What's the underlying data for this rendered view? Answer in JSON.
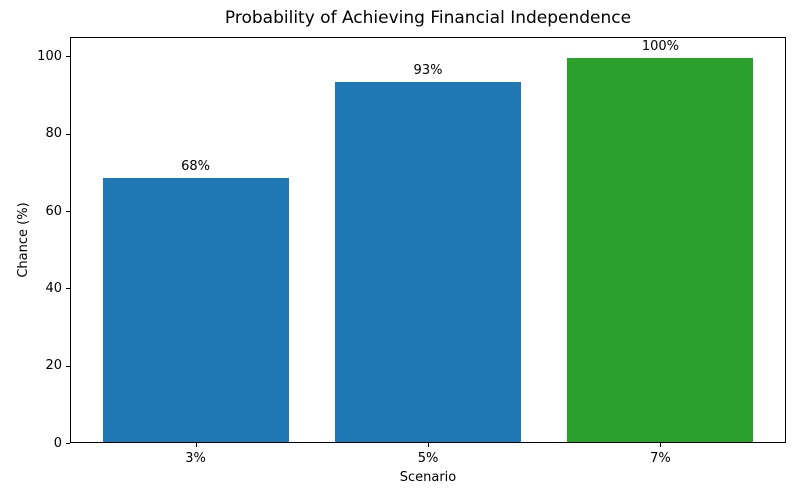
{
  "chart_data": {
    "type": "bar",
    "title": "Probability of Achieving Financial Independence",
    "xlabel": "Scenario",
    "ylabel": "Chance (%)",
    "categories": [
      "3%",
      "5%",
      "7%"
    ],
    "values": [
      68.5,
      93.3,
      99.6
    ],
    "bar_labels": [
      "68%",
      "93%",
      "100%"
    ],
    "bar_colors": [
      "#1f77b4",
      "#1f77b4",
      "#2ca02c"
    ],
    "ylim": [
      0,
      105
    ],
    "yticks": [
      0,
      20,
      40,
      60,
      80,
      100
    ],
    "grid": false,
    "legend": false
  }
}
